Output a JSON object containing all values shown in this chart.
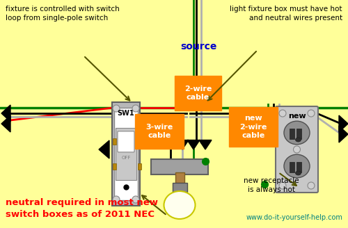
{
  "background_color": "#FFFF99",
  "top_left_text": "fixture is controlled with switch\nloop from single-pole switch",
  "top_right_text": "light fixture box must have hot\nand neutral wires present",
  "source_label": "source",
  "cable_label_1": "2-wire\ncable",
  "cable_label_2": "3-wire\ncable",
  "cable_label_3": "new\n2-wire\ncable",
  "bottom_left_text": "neutral required in most new\nswitch boxes as of 2011 NEC",
  "bottom_right_text": "www.do-it-yourself-help.com",
  "new_receptacle_text": "new receptacle\nis always hot",
  "new_label": "new",
  "sw1_label": "SW1",
  "off_label": "OFF",
  "orange_color": "#FF8800",
  "red_text_color": "#FF0000",
  "blue_text_color": "#0000CC",
  "teal_text_color": "#008080",
  "black_wire": "#000000",
  "white_wire": "#FFFFFF",
  "red_wire": "#FF0000",
  "green_wire": "#008000",
  "gray_wire": "#B0B0B0",
  "lw_wire": 2.0
}
